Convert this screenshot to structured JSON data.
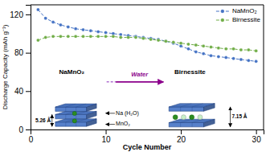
{
  "chart_data": {
    "type": "line",
    "x_label": "Cycle Number",
    "y_label": "Discharge Capacity (mAh g⁻¹)",
    "x": [
      1,
      2,
      3,
      4,
      5,
      6,
      7,
      8,
      9,
      10,
      11,
      12,
      13,
      14,
      15,
      16,
      17,
      18,
      19,
      20,
      21,
      22,
      23,
      24,
      25,
      26,
      27,
      28,
      29,
      30
    ],
    "series": [
      {
        "name": "NaMnO₂",
        "color": "#4472C4",
        "marker": "circle",
        "line_style": "dashed",
        "values": [
          125,
          116,
          112,
          109,
          107,
          105,
          104,
          103,
          102,
          101,
          100,
          99,
          98,
          97,
          96,
          95,
          94,
          92,
          90,
          87,
          84,
          81,
          79,
          77,
          76,
          75,
          74,
          73,
          72,
          71
        ]
      },
      {
        "name": "Birnessite",
        "color": "#70AD47",
        "marker": "circle",
        "line_style": "dashed",
        "values": [
          93,
          96,
          97,
          97,
          97,
          97,
          97,
          97,
          97,
          97,
          97,
          96,
          96,
          96,
          95,
          94,
          93,
          92,
          91,
          90,
          89,
          88,
          87,
          86,
          85,
          84,
          84,
          83,
          83,
          82
        ]
      }
    ],
    "xlim": [
      0,
      31
    ],
    "ylim": [
      0,
      130
    ],
    "xticks": [
      0,
      10,
      20,
      30
    ],
    "yticks": [
      0,
      40,
      80,
      120
    ],
    "grid": false,
    "legend": "upper right",
    "annotations": [
      "NaMnO₂",
      "Birnessite",
      "Water",
      "Na (H₂O)",
      "MnO₂",
      "5.26 Å",
      "7.15 Å"
    ]
  }
}
